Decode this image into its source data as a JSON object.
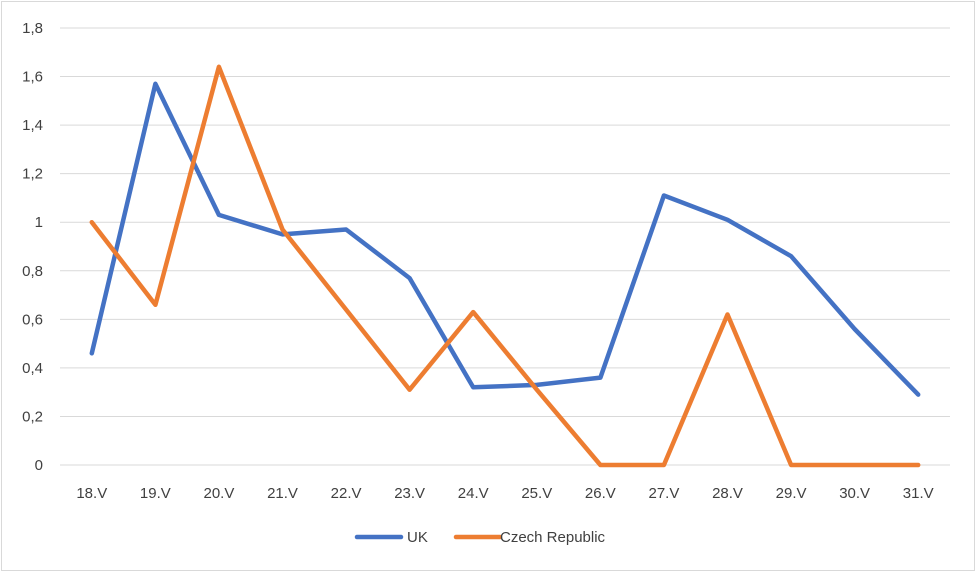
{
  "chart_data": {
    "type": "line",
    "title": "",
    "xlabel": "",
    "ylabel": "",
    "categories": [
      "18.V",
      "19.V",
      "20.V",
      "21.V",
      "22.V",
      "23.V",
      "24.V",
      "25.V",
      "26.V",
      "27.V",
      "28.V",
      "29.V",
      "30.V",
      "31.V"
    ],
    "ylim": [
      0,
      1.8
    ],
    "yticks": [
      "0",
      "0,2",
      "0,4",
      "0,6",
      "0,8",
      "1",
      "1,2",
      "1,4",
      "1,6",
      "1,8"
    ],
    "grid": true,
    "legend": "bottom",
    "series": [
      {
        "name": "UK",
        "color": "#4472c4",
        "values": [
          0.46,
          1.57,
          1.03,
          0.95,
          0.97,
          0.77,
          0.32,
          0.33,
          0.36,
          1.11,
          1.01,
          0.86,
          0.56,
          0.29
        ]
      },
      {
        "name": "Czech Republic",
        "color": "#ed7d31",
        "values": [
          1.0,
          0.66,
          1.64,
          0.97,
          0.64,
          0.31,
          0.63,
          0.31,
          0.0,
          0.0,
          0.62,
          0.0,
          0.0,
          0.0
        ]
      }
    ]
  }
}
